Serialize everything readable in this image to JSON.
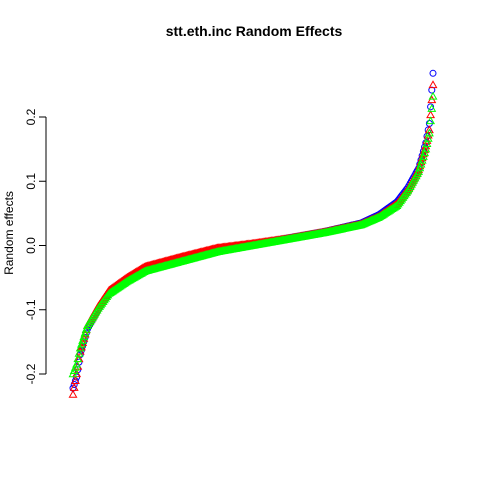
{
  "chart_data": {
    "type": "scatter",
    "title": "stt.eth.inc Random Effects",
    "xlabel": "",
    "ylabel": "Random effects",
    "ylim": [
      -0.23,
      0.27
    ],
    "y_ticks": [
      -0.2,
      -0.1,
      0.0,
      0.1,
      0.2
    ],
    "y_tick_labels": [
      "-0.2",
      "-0.1",
      "0.0",
      "0.1",
      "0.2"
    ],
    "x_axis_shown": false,
    "grid": false,
    "legend": "none",
    "x_range": [
      0,
      1
    ],
    "series": [
      {
        "color": "#0000ff",
        "marker": "circle",
        "x": [
          0.0,
          0.01,
          0.02,
          0.04,
          0.07,
          0.1,
          0.15,
          0.2,
          0.3,
          0.4,
          0.5,
          0.6,
          0.7,
          0.8,
          0.85,
          0.9,
          0.93,
          0.96,
          0.98,
          0.99,
          1.0
        ],
        "values": [
          -0.222,
          -0.205,
          -0.17,
          -0.13,
          -0.1,
          -0.075,
          -0.055,
          -0.037,
          -0.022,
          -0.008,
          0.002,
          0.012,
          0.022,
          0.035,
          0.048,
          0.068,
          0.09,
          0.12,
          0.16,
          0.19,
          0.268
        ]
      },
      {
        "color": "#ff0000",
        "marker": "triangle",
        "x": [
          0.0,
          0.01,
          0.02,
          0.04,
          0.07,
          0.1,
          0.15,
          0.2,
          0.3,
          0.4,
          0.5,
          0.6,
          0.7,
          0.8,
          0.85,
          0.9,
          0.93,
          0.96,
          0.98,
          0.99,
          1.0
        ],
        "values": [
          -0.232,
          -0.2,
          -0.165,
          -0.125,
          -0.095,
          -0.07,
          -0.05,
          -0.033,
          -0.018,
          -0.004,
          0.003,
          0.011,
          0.021,
          0.033,
          0.045,
          0.065,
          0.087,
          0.118,
          0.155,
          0.18,
          0.25
        ]
      },
      {
        "color": "#00ff00",
        "marker": "triangle",
        "x": [
          0.0,
          0.01,
          0.02,
          0.04,
          0.07,
          0.1,
          0.15,
          0.2,
          0.3,
          0.4,
          0.5,
          0.6,
          0.7,
          0.8,
          0.85,
          0.9,
          0.93,
          0.96,
          0.98,
          0.99,
          1.0
        ],
        "values": [
          -0.2,
          -0.185,
          -0.16,
          -0.125,
          -0.098,
          -0.075,
          -0.056,
          -0.04,
          -0.025,
          -0.01,
          0.0,
          0.01,
          0.02,
          0.032,
          0.044,
          0.062,
          0.085,
          0.115,
          0.15,
          0.175,
          0.232
        ]
      }
    ]
  }
}
